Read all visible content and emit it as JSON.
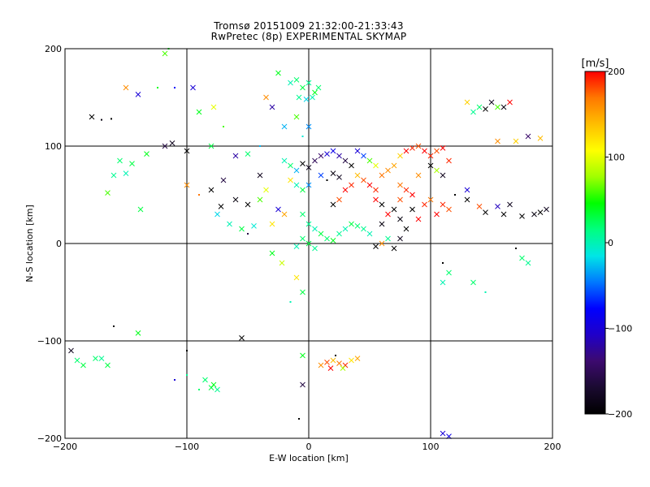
{
  "chart_data": {
    "type": "scatter",
    "title": "Tromsø 20151009 21:32:00-21:33:43",
    "subtitle": "RwPretec (8p) EXPERIMENTAL SKYMAP",
    "xlabel": "E-W location [km]",
    "ylabel": "N-S location [km]",
    "xlim": [
      -200,
      200
    ],
    "ylim": [
      -200,
      200
    ],
    "xticks": [
      -200,
      -100,
      0,
      100,
      200
    ],
    "yticks": [
      -200,
      -100,
      0,
      100,
      200
    ],
    "grid": true,
    "colorbar": {
      "label": "[m/s]",
      "min": -200,
      "max": 200,
      "ticks": [
        -200,
        -100,
        0,
        100,
        200
      ],
      "colormap": [
        "#000000",
        "#1a0a30",
        "#3c0a6e",
        "#2000c8",
        "#0000ff",
        "#0078ff",
        "#00e6e6",
        "#00ff80",
        "#00ff00",
        "#a0ff00",
        "#ffff00",
        "#ffbe00",
        "#ff7800",
        "#ff0000"
      ]
    },
    "markers": [
      "x",
      "."
    ],
    "series_note": "points colored by line-of-sight velocity",
    "points": [
      [
        -150,
        160,
        160,
        "x"
      ],
      [
        -140,
        153,
        -100,
        "x"
      ],
      [
        -124,
        160,
        40,
        "."
      ],
      [
        -110,
        160,
        -80,
        "."
      ],
      [
        -118,
        195,
        60,
        "x"
      ],
      [
        -115,
        200,
        40,
        "."
      ],
      [
        -178,
        130,
        -200,
        "x"
      ],
      [
        -170,
        127,
        -190,
        "."
      ],
      [
        -162,
        128,
        -200,
        "."
      ],
      [
        -155,
        85,
        20,
        "x"
      ],
      [
        -145,
        82,
        30,
        "x"
      ],
      [
        -160,
        70,
        10,
        "x"
      ],
      [
        -150,
        72,
        0,
        "x"
      ],
      [
        -133,
        92,
        40,
        "x"
      ],
      [
        -118,
        100,
        -160,
        "x"
      ],
      [
        -112,
        103,
        -180,
        "x"
      ],
      [
        -100,
        95,
        -200,
        "x"
      ],
      [
        -165,
        52,
        60,
        "x"
      ],
      [
        -138,
        35,
        30,
        "x"
      ],
      [
        -95,
        160,
        -100,
        "x"
      ],
      [
        -90,
        135,
        40,
        "x"
      ],
      [
        -78,
        140,
        100,
        "x"
      ],
      [
        -70,
        120,
        60,
        "."
      ],
      [
        -80,
        100,
        30,
        "x"
      ],
      [
        -60,
        90,
        -120,
        "x"
      ],
      [
        -50,
        92,
        20,
        "x"
      ],
      [
        -40,
        100,
        -30,
        "."
      ],
      [
        -100,
        60,
        160,
        "x"
      ],
      [
        -90,
        50,
        170,
        "."
      ],
      [
        -80,
        55,
        -200,
        "x"
      ],
      [
        -70,
        65,
        -160,
        "x"
      ],
      [
        -72,
        38,
        -200,
        "x"
      ],
      [
        -60,
        45,
        -190,
        "x"
      ],
      [
        -50,
        40,
        -200,
        "x"
      ],
      [
        -40,
        45,
        60,
        "x"
      ],
      [
        -65,
        20,
        0,
        "x"
      ],
      [
        -55,
        15,
        30,
        "x"
      ],
      [
        -45,
        18,
        -10,
        "x"
      ],
      [
        -30,
        20,
        120,
        "x"
      ],
      [
        -25,
        35,
        -100,
        "x"
      ],
      [
        -20,
        30,
        150,
        "x"
      ],
      [
        -35,
        55,
        100,
        "x"
      ],
      [
        -40,
        70,
        -180,
        "x"
      ],
      [
        -50,
        10,
        -160,
        "."
      ],
      [
        -75,
        30,
        -20,
        "x"
      ],
      [
        -30,
        -10,
        40,
        "x"
      ],
      [
        -22,
        -20,
        90,
        "x"
      ],
      [
        -35,
        150,
        160,
        "x"
      ],
      [
        -30,
        140,
        -120,
        "x"
      ],
      [
        -25,
        175,
        40,
        "x"
      ],
      [
        -15,
        165,
        0,
        "x"
      ],
      [
        -10,
        168,
        20,
        "x"
      ],
      [
        -5,
        160,
        30,
        "x"
      ],
      [
        0,
        165,
        10,
        "x"
      ],
      [
        5,
        155,
        40,
        "x"
      ],
      [
        -8,
        150,
        10,
        "x"
      ],
      [
        -2,
        148,
        -20,
        "x"
      ],
      [
        3,
        150,
        0,
        "x"
      ],
      [
        8,
        160,
        20,
        "x"
      ],
      [
        -20,
        120,
        -30,
        "x"
      ],
      [
        -10,
        130,
        60,
        "x"
      ],
      [
        -5,
        110,
        -10,
        "."
      ],
      [
        0,
        120,
        -40,
        "x"
      ],
      [
        -20,
        85,
        0,
        "x"
      ],
      [
        -15,
        80,
        20,
        "x"
      ],
      [
        -10,
        75,
        -30,
        "x"
      ],
      [
        -5,
        82,
        -200,
        "x"
      ],
      [
        0,
        78,
        -180,
        "x"
      ],
      [
        5,
        85,
        -150,
        "x"
      ],
      [
        10,
        90,
        -140,
        "x"
      ],
      [
        15,
        92,
        -100,
        "x"
      ],
      [
        20,
        95,
        -90,
        "x"
      ],
      [
        25,
        90,
        -120,
        "x"
      ],
      [
        30,
        85,
        -160,
        "x"
      ],
      [
        35,
        80,
        -200,
        "x"
      ],
      [
        10,
        70,
        -60,
        "x"
      ],
      [
        15,
        65,
        -200,
        "."
      ],
      [
        20,
        72,
        -190,
        "x"
      ],
      [
        25,
        68,
        -180,
        "x"
      ],
      [
        -15,
        65,
        120,
        "x"
      ],
      [
        -10,
        60,
        0,
        "x"
      ],
      [
        -5,
        55,
        30,
        "x"
      ],
      [
        0,
        60,
        -40,
        "x"
      ],
      [
        40,
        95,
        -100,
        "x"
      ],
      [
        45,
        90,
        -60,
        "x"
      ],
      [
        50,
        85,
        60,
        "x"
      ],
      [
        55,
        80,
        100,
        "x"
      ],
      [
        40,
        70,
        140,
        "x"
      ],
      [
        45,
        65,
        180,
        "x"
      ],
      [
        50,
        60,
        200,
        "x"
      ],
      [
        55,
        55,
        190,
        "x"
      ],
      [
        60,
        70,
        170,
        "x"
      ],
      [
        65,
        75,
        160,
        "x"
      ],
      [
        70,
        80,
        150,
        "x"
      ],
      [
        75,
        90,
        130,
        "x"
      ],
      [
        80,
        95,
        200,
        "x"
      ],
      [
        85,
        98,
        190,
        "x"
      ],
      [
        90,
        100,
        180,
        "x"
      ],
      [
        95,
        95,
        200,
        "x"
      ],
      [
        100,
        90,
        190,
        "x"
      ],
      [
        105,
        95,
        180,
        "x"
      ],
      [
        110,
        98,
        200,
        "x"
      ],
      [
        115,
        85,
        190,
        "x"
      ],
      [
        100,
        80,
        -200,
        "x"
      ],
      [
        105,
        75,
        80,
        "x"
      ],
      [
        110,
        70,
        -180,
        "x"
      ],
      [
        90,
        70,
        160,
        "x"
      ],
      [
        75,
        60,
        170,
        "x"
      ],
      [
        80,
        55,
        190,
        "x"
      ],
      [
        85,
        50,
        200,
        "x"
      ],
      [
        75,
        45,
        180,
        "x"
      ],
      [
        70,
        35,
        -200,
        "x"
      ],
      [
        75,
        25,
        -190,
        "x"
      ],
      [
        80,
        15,
        -200,
        "x"
      ],
      [
        75,
        5,
        -180,
        "x"
      ],
      [
        85,
        35,
        -200,
        "x"
      ],
      [
        90,
        25,
        200,
        "x"
      ],
      [
        95,
        40,
        190,
        "x"
      ],
      [
        100,
        45,
        170,
        "x"
      ],
      [
        105,
        30,
        200,
        "x"
      ],
      [
        110,
        40,
        190,
        "x"
      ],
      [
        115,
        35,
        180,
        "x"
      ],
      [
        120,
        50,
        -200,
        "."
      ],
      [
        30,
        55,
        200,
        "x"
      ],
      [
        35,
        60,
        190,
        "x"
      ],
      [
        25,
        45,
        180,
        "x"
      ],
      [
        20,
        40,
        -200,
        "x"
      ],
      [
        55,
        45,
        200,
        "x"
      ],
      [
        60,
        40,
        -200,
        "x"
      ],
      [
        65,
        30,
        200,
        "x"
      ],
      [
        60,
        20,
        -190,
        "x"
      ],
      [
        -5,
        30,
        20,
        "x"
      ],
      [
        0,
        20,
        10,
        "x"
      ],
      [
        5,
        15,
        0,
        "x"
      ],
      [
        10,
        10,
        30,
        "x"
      ],
      [
        15,
        5,
        20,
        "x"
      ],
      [
        20,
        3,
        40,
        "x"
      ],
      [
        25,
        10,
        10,
        "x"
      ],
      [
        30,
        15,
        0,
        "x"
      ],
      [
        35,
        20,
        30,
        "x"
      ],
      [
        40,
        18,
        20,
        "x"
      ],
      [
        45,
        15,
        10,
        "x"
      ],
      [
        50,
        10,
        0,
        "x"
      ],
      [
        -5,
        5,
        20,
        "x"
      ],
      [
        0,
        0,
        30,
        "x"
      ],
      [
        5,
        -5,
        10,
        "x"
      ],
      [
        -10,
        -3,
        0,
        "x"
      ],
      [
        55,
        -3,
        -200,
        "x"
      ],
      [
        60,
        0,
        160,
        "x"
      ],
      [
        70,
        -5,
        -200,
        "x"
      ],
      [
        65,
        5,
        10,
        "x"
      ],
      [
        -10,
        -35,
        120,
        "x"
      ],
      [
        -5,
        -50,
        30,
        "x"
      ],
      [
        -15,
        -60,
        0,
        "."
      ],
      [
        140,
        140,
        20,
        "x"
      ],
      [
        145,
        138,
        -200,
        "x"
      ],
      [
        150,
        145,
        -180,
        "x"
      ],
      [
        155,
        140,
        60,
        "x"
      ],
      [
        160,
        140,
        -190,
        "x"
      ],
      [
        165,
        145,
        200,
        "x"
      ],
      [
        135,
        135,
        10,
        "x"
      ],
      [
        130,
        145,
        130,
        "x"
      ],
      [
        155,
        105,
        160,
        "x"
      ],
      [
        170,
        105,
        130,
        "x"
      ],
      [
        180,
        110,
        -140,
        "x"
      ],
      [
        190,
        108,
        140,
        "x"
      ],
      [
        130,
        45,
        -200,
        "x"
      ],
      [
        140,
        38,
        180,
        "x"
      ],
      [
        145,
        32,
        -200,
        "x"
      ],
      [
        155,
        38,
        -110,
        "x"
      ],
      [
        160,
        30,
        -200,
        "x"
      ],
      [
        165,
        40,
        -180,
        "x"
      ],
      [
        175,
        28,
        -200,
        "x"
      ],
      [
        185,
        30,
        -190,
        "x"
      ],
      [
        190,
        32,
        -200,
        "x"
      ],
      [
        195,
        35,
        -180,
        "x"
      ],
      [
        130,
        55,
        -100,
        "x"
      ],
      [
        110,
        -20,
        -200,
        "."
      ],
      [
        115,
        -30,
        20,
        "x"
      ],
      [
        110,
        -40,
        0,
        "x"
      ],
      [
        135,
        -40,
        20,
        "x"
      ],
      [
        145,
        -50,
        0,
        "."
      ],
      [
        175,
        -15,
        20,
        "x"
      ],
      [
        180,
        -20,
        10,
        "x"
      ],
      [
        170,
        -5,
        -200,
        "."
      ],
      [
        -195,
        -110,
        -180,
        "x"
      ],
      [
        -190,
        -120,
        20,
        "x"
      ],
      [
        -185,
        -125,
        30,
        "x"
      ],
      [
        -175,
        -118,
        20,
        "x"
      ],
      [
        -170,
        -118,
        10,
        "x"
      ],
      [
        -165,
        -125,
        30,
        "x"
      ],
      [
        -140,
        -92,
        40,
        "x"
      ],
      [
        -160,
        -85,
        -200,
        "."
      ],
      [
        -100,
        -110,
        -200,
        "."
      ],
      [
        -55,
        -97,
        -200,
        "x"
      ],
      [
        -100,
        -135,
        10,
        "."
      ],
      [
        -85,
        -140,
        20,
        "x"
      ],
      [
        -80,
        -148,
        30,
        "x"
      ],
      [
        -75,
        -150,
        10,
        "x"
      ],
      [
        -78,
        -145,
        40,
        "x"
      ],
      [
        -90,
        -150,
        20,
        "."
      ],
      [
        -110,
        -140,
        -100,
        "."
      ],
      [
        10,
        -125,
        160,
        "x"
      ],
      [
        15,
        -122,
        180,
        "x"
      ],
      [
        20,
        -120,
        140,
        "x"
      ],
      [
        25,
        -123,
        170,
        "x"
      ],
      [
        30,
        -125,
        190,
        "x"
      ],
      [
        35,
        -120,
        120,
        "x"
      ],
      [
        40,
        -118,
        150,
        "x"
      ],
      [
        18,
        -128,
        200,
        "x"
      ],
      [
        28,
        -128,
        80,
        "x"
      ],
      [
        22,
        -115,
        -200,
        "."
      ],
      [
        -5,
        -115,
        40,
        "x"
      ],
      [
        -5,
        -145,
        -160,
        "x"
      ],
      [
        -8,
        -180,
        -200,
        "."
      ],
      [
        110,
        -195,
        -100,
        "x"
      ],
      [
        115,
        -198,
        -90,
        "x"
      ]
    ]
  }
}
